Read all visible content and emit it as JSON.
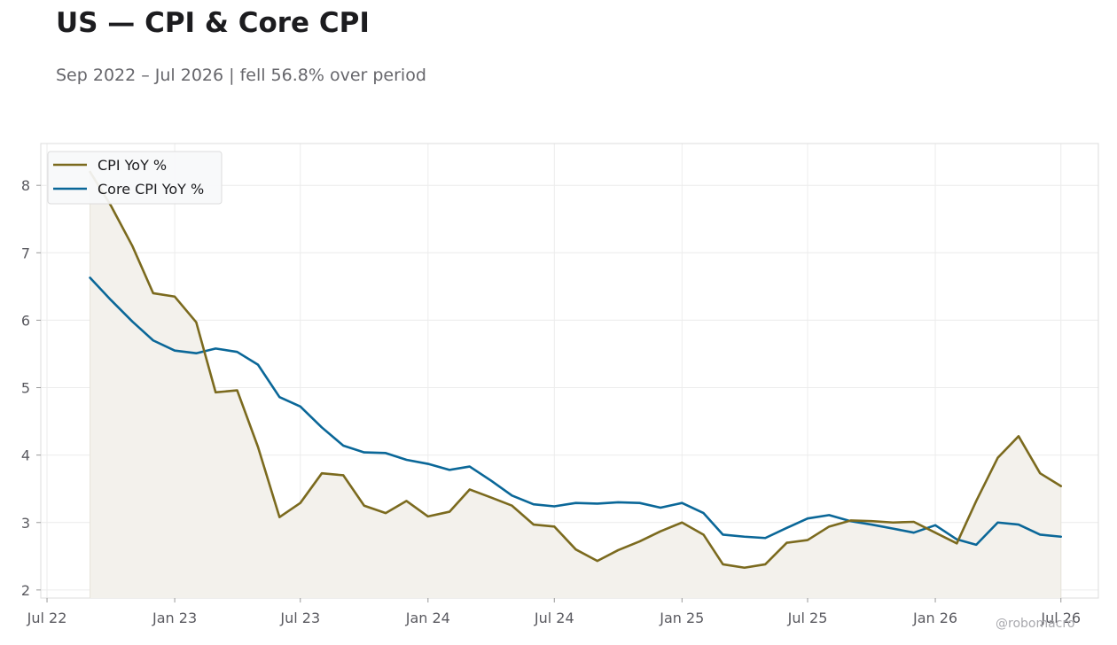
{
  "title": "US — CPI & Core CPI",
  "subtitle": "Sep 2022 – Jul 2026 | fell 56.8% over period",
  "watermark": "@robomacro",
  "colors": {
    "cpi": "#7b6a1e",
    "core": "#0a6798",
    "fill": "#f3f1ec",
    "grid": "#ececec",
    "frame": "#dddddd"
  },
  "chart_data": {
    "type": "line",
    "title": "US — CPI & Core CPI",
    "subtitle": "Sep 2022 – Jul 2026 | fell 56.8% over period",
    "xlabel": "",
    "ylabel": "",
    "x": [
      "2022-09",
      "2022-10",
      "2022-11",
      "2022-12",
      "2023-01",
      "2023-02",
      "2023-03",
      "2023-04",
      "2023-05",
      "2023-06",
      "2023-07",
      "2023-08",
      "2023-09",
      "2023-10",
      "2023-11",
      "2023-12",
      "2024-01",
      "2024-02",
      "2024-03",
      "2024-04",
      "2024-05",
      "2024-06",
      "2024-07",
      "2024-08",
      "2024-09",
      "2024-10",
      "2024-11",
      "2024-12",
      "2025-01",
      "2025-02",
      "2025-03",
      "2025-04",
      "2025-05",
      "2025-06",
      "2025-07",
      "2025-08",
      "2025-09",
      "2025-10",
      "2025-11",
      "2025-12",
      "2026-01",
      "2026-02",
      "2026-03",
      "2026-04",
      "2026-05",
      "2026-06",
      "2026-07"
    ],
    "series": [
      {
        "name": "CPI YoY %",
        "fill_below": true,
        "values": [
          8.2,
          7.7,
          7.1,
          6.4,
          6.35,
          5.97,
          4.93,
          4.96,
          4.12,
          3.08,
          3.29,
          3.73,
          3.7,
          3.25,
          3.14,
          3.32,
          3.09,
          3.16,
          3.49,
          3.37,
          3.25,
          2.97,
          2.94,
          2.6,
          2.43,
          2.59,
          2.72,
          2.87,
          3.0,
          2.82,
          2.38,
          2.33,
          2.38,
          2.7,
          2.74,
          2.94,
          3.03,
          3.02,
          3.0,
          3.01,
          2.85,
          2.69,
          3.32,
          3.96,
          4.28,
          3.73,
          3.54
        ]
      },
      {
        "name": "Core CPI YoY %",
        "values": [
          6.63,
          6.3,
          5.98,
          5.7,
          5.55,
          5.51,
          5.58,
          5.53,
          5.34,
          4.86,
          4.72,
          4.41,
          4.14,
          4.04,
          4.03,
          3.93,
          3.87,
          3.78,
          3.83,
          3.62,
          3.4,
          3.27,
          3.24,
          3.29,
          3.28,
          3.3,
          3.29,
          3.22,
          3.29,
          3.14,
          2.82,
          2.79,
          2.77,
          2.92,
          3.06,
          3.11,
          3.02,
          2.97,
          2.91,
          2.85,
          2.96,
          2.75,
          2.67,
          3.0,
          2.97,
          2.82,
          2.79
        ]
      }
    ],
    "x_ticks": [
      "Jul 22",
      "Jan 23",
      "Jul 23",
      "Jan 24",
      "Jul 24",
      "Jan 25",
      "Jul 25",
      "Jan 26",
      "Jul 26"
    ],
    "y_ticks": [
      2,
      3,
      4,
      5,
      6,
      7,
      8
    ],
    "ylim": [
      1.88,
      8.62
    ],
    "xlim": [
      "2022-06-22",
      "2026-08-24"
    ],
    "grid": true,
    "legend": "top-left"
  }
}
